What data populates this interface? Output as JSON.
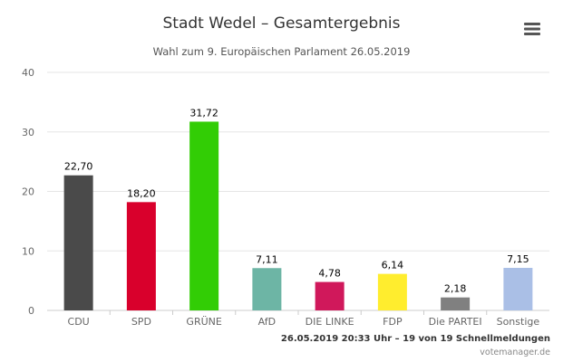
{
  "menu_icon": "hamburger-menu-icon",
  "credits": {
    "timestamp": "26.05.2019 20:33 Uhr – 19 von 19 Schnellmeldungen",
    "site": "votemanager.de"
  },
  "chart_data": {
    "type": "bar",
    "title": "Stadt Wedel – Gesamtergebnis",
    "subtitle": "Wahl zum 9. Europäischen Parlament 26.05.2019",
    "xlabel": "",
    "ylabel": "",
    "ylim": [
      0,
      40
    ],
    "yticks": [
      0,
      10,
      20,
      30,
      40
    ],
    "grid": true,
    "legend": "none",
    "categories": [
      "CDU",
      "SPD",
      "GRÜNE",
      "AfD",
      "DIE LINKE",
      "FDP",
      "Die PARTEI",
      "Sonstige"
    ],
    "values": [
      22.7,
      18.2,
      31.72,
      7.11,
      4.78,
      6.14,
      2.18,
      7.15
    ],
    "value_labels": [
      "22,70",
      "18,20",
      "31,72",
      "7,11",
      "4,78",
      "6,14",
      "2,18",
      "7,15"
    ],
    "colors": [
      "#4a4a4a",
      "#d9002c",
      "#32cd05",
      "#6db5a5",
      "#d0185b",
      "#ffed2e",
      "#808080",
      "#aabfe6"
    ]
  }
}
